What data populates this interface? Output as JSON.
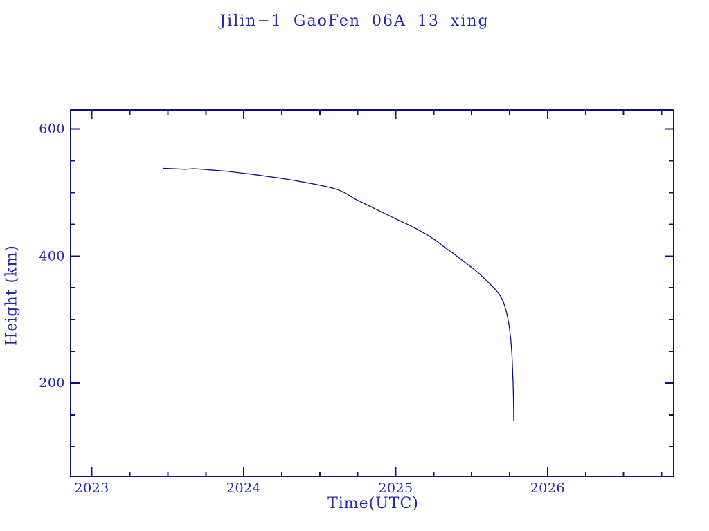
{
  "page": {
    "background": "#ffffff"
  },
  "chart_data": {
    "type": "line",
    "title": "Jilin−1 GaoFen 06A 13 xing",
    "xlabel": "Time(UTC)",
    "ylabel": "Height (km)",
    "xlim": [
      2022.86,
      2026.83
    ],
    "ylim": [
      53,
      630
    ],
    "grid": false,
    "legend": "none",
    "line_color": "#10107d",
    "text_color": "#2525ae",
    "x_major_ticks": [
      {
        "value": 2023,
        "label": "2023"
      },
      {
        "value": 2024,
        "label": "2024"
      },
      {
        "value": 2025,
        "label": "2025"
      },
      {
        "value": 2026,
        "label": "2026"
      }
    ],
    "x_minor_step": 0.25,
    "y_major_ticks": [
      {
        "value": 600,
        "label": "600"
      },
      {
        "value": 400,
        "label": "400"
      },
      {
        "value": 200,
        "label": "200"
      }
    ],
    "y_minor_step": 50,
    "series": [
      {
        "name": "orbital-height",
        "points": [
          [
            2023.47,
            538.0
          ],
          [
            2023.54,
            537.5
          ],
          [
            2023.61,
            536.5
          ],
          [
            2023.67,
            537.5
          ],
          [
            2023.73,
            536.5
          ],
          [
            2023.81,
            535.0
          ],
          [
            2023.89,
            533.5
          ],
          [
            2023.97,
            531.0
          ],
          [
            2024.06,
            528.5
          ],
          [
            2024.15,
            525.5
          ],
          [
            2024.24,
            522.5
          ],
          [
            2024.32,
            519.5
          ],
          [
            2024.4,
            516.0
          ],
          [
            2024.48,
            512.5
          ],
          [
            2024.56,
            508.5
          ],
          [
            2024.62,
            504.5
          ],
          [
            2024.67,
            499.0
          ],
          [
            2024.73,
            490.0
          ],
          [
            2024.79,
            483.0
          ],
          [
            2024.85,
            476.0
          ],
          [
            2024.91,
            469.0
          ],
          [
            2024.97,
            462.0
          ],
          [
            2025.03,
            455.0
          ],
          [
            2025.09,
            448.5
          ],
          [
            2025.15,
            441.0
          ],
          [
            2025.21,
            433.0
          ],
          [
            2025.27,
            423.5
          ],
          [
            2025.32,
            414.0
          ],
          [
            2025.38,
            404.0
          ],
          [
            2025.44,
            393.0
          ],
          [
            2025.5,
            382.0
          ],
          [
            2025.56,
            370.0
          ],
          [
            2025.61,
            358.5
          ],
          [
            2025.65,
            349.0
          ],
          [
            2025.685,
            339.0
          ],
          [
            2025.71,
            327.0
          ],
          [
            2025.73,
            311.0
          ],
          [
            2025.745,
            293.0
          ],
          [
            2025.757,
            270.0
          ],
          [
            2025.765,
            246.0
          ],
          [
            2025.77,
            219.0
          ],
          [
            2025.774,
            190.0
          ],
          [
            2025.776,
            162.0
          ],
          [
            2025.777,
            140.0
          ]
        ]
      }
    ]
  }
}
